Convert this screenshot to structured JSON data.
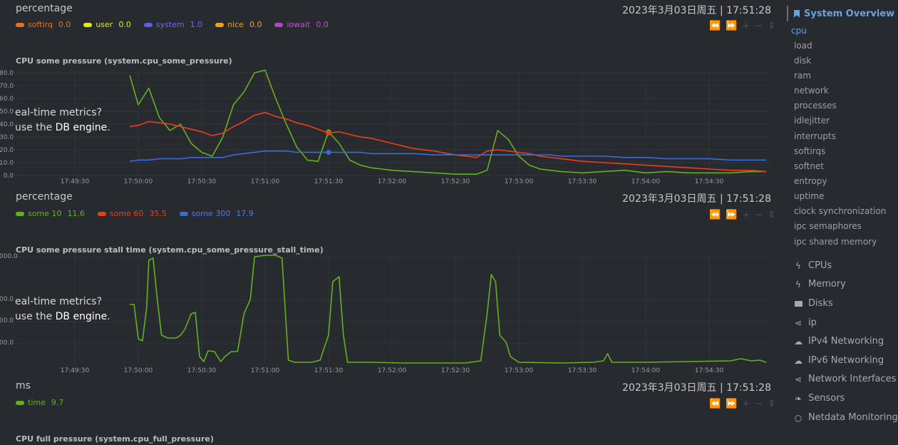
{
  "timestamp": "2023年3月03日周五 | 17:51:28",
  "sections": [
    {
      "unit": "percentage",
      "legend": [
        {
          "name": "softirq",
          "value": "0.0",
          "color": "#e8731c"
        },
        {
          "name": "user",
          "value": "0.0",
          "color": "#e3e81c"
        },
        {
          "name": "system",
          "value": "1.0",
          "color": "#5e5ee8"
        },
        {
          "name": "nice",
          "value": "0.0",
          "color": "#f0a020"
        },
        {
          "name": "iowait",
          "value": "0.0",
          "color": "#b842c8"
        }
      ]
    },
    {
      "unit": "percentage",
      "legend": [
        {
          "name": "some 10",
          "value": "11.6",
          "color": "#66b01c"
        },
        {
          "name": "some 60",
          "value": "35.5",
          "color": "#ee3d1a"
        },
        {
          "name": "some 300",
          "value": "17.9",
          "color": "#3a6cd8"
        }
      ]
    },
    {
      "unit": "ms",
      "legend": [
        {
          "name": "time",
          "value": "9.7",
          "color": "#66b01c"
        }
      ]
    }
  ],
  "charts": {
    "pressure": {
      "title": "CPU some pressure (system.cpu_some_pressure)",
      "yticks": [
        "80.0",
        "70.0",
        "60.0",
        "50.0",
        "40.0",
        "30.0",
        "20.0",
        "10.0",
        "0.0"
      ]
    },
    "stall": {
      "title": "CPU some pressure stall time (system.cpu_some_pressure_stall_time)",
      "yticks": [
        "000.0",
        "00.0",
        "00.0",
        "00.0"
      ]
    },
    "full": {
      "title": "CPU full pressure (system.cpu_full_pressure)"
    }
  },
  "xticks": [
    "17:49:30",
    "17:50:00",
    "17:50:30",
    "17:51:00",
    "17:51:30",
    "17:52:00",
    "17:52:30",
    "17:53:00",
    "17:53:30",
    "17:54:00",
    "17:54:30"
  ],
  "overlay": {
    "line1": "eal-time metrics?",
    "line2_pre": "use the ",
    "line2_link": "DB engine",
    "line2_post": "."
  },
  "toolbar_icons": [
    "rewind-icon",
    "fast-forward-icon",
    "zoom-in-icon",
    "zoom-out-icon",
    "resize-icon"
  ],
  "sidebar": {
    "header": "System Overview",
    "items": [
      "cpu",
      "load",
      "disk",
      "ram",
      "network",
      "processes",
      "idlejitter",
      "interrupts",
      "softirqs",
      "softnet",
      "entropy",
      "uptime",
      "clock synchronization",
      "ipc semaphores",
      "ipc shared memory"
    ],
    "groups": [
      {
        "label": "CPUs",
        "icon": "bolt-icon"
      },
      {
        "label": "Memory",
        "icon": "bolt-icon"
      },
      {
        "label": "Disks",
        "icon": "folder-icon"
      },
      {
        "label": "ip",
        "icon": "share-icon"
      },
      {
        "label": "IPv4 Networking",
        "icon": "cloud-icon"
      },
      {
        "label": "IPv6 Networking",
        "icon": "cloud-icon"
      },
      {
        "label": "Network Interfaces",
        "icon": "share-icon"
      },
      {
        "label": "Sensors",
        "icon": "leaf-icon"
      },
      {
        "label": "Netdata Monitoring",
        "icon": "circle-icon"
      }
    ]
  },
  "chart_data": [
    {
      "type": "line",
      "title": "CPU some pressure (system.cpu_some_pressure)",
      "ylabel": "percentage",
      "ylim": [
        0,
        80
      ],
      "x": [
        "17:49:56",
        "17:50:00",
        "17:50:05",
        "17:50:10",
        "17:50:15",
        "17:50:20",
        "17:50:25",
        "17:50:30",
        "17:50:35",
        "17:50:40",
        "17:50:45",
        "17:50:50",
        "17:50:55",
        "17:51:00",
        "17:51:05",
        "17:51:10",
        "17:51:15",
        "17:51:20",
        "17:51:25",
        "17:51:30",
        "17:51:35",
        "17:51:40",
        "17:51:45",
        "17:51:50",
        "17:51:55",
        "17:52:00",
        "17:52:10",
        "17:52:20",
        "17:52:30",
        "17:52:40",
        "17:52:45",
        "17:52:50",
        "17:52:55",
        "17:53:00",
        "17:53:05",
        "17:53:10",
        "17:53:15",
        "17:53:20",
        "17:53:30",
        "17:53:40",
        "17:53:50",
        "17:54:00",
        "17:54:10",
        "17:54:20",
        "17:54:30",
        "17:54:40",
        "17:54:50",
        "17:54:57"
      ],
      "series": [
        {
          "name": "some 10",
          "color": "#66b01c",
          "values": [
            78,
            55,
            68,
            45,
            35,
            40,
            25,
            18,
            15,
            30,
            55,
            65,
            80,
            82,
            60,
            40,
            22,
            12,
            11,
            34,
            25,
            12,
            8,
            6,
            5,
            4,
            3,
            2,
            1,
            1,
            4,
            35,
            28,
            15,
            8,
            5,
            4,
            3,
            2,
            3,
            4,
            2,
            3,
            2,
            2,
            2,
            3,
            3
          ]
        },
        {
          "name": "some 60",
          "color": "#ee3d1a",
          "values": [
            38,
            39,
            42,
            41,
            40,
            38,
            36,
            34,
            31,
            33,
            38,
            42,
            47,
            49,
            46,
            44,
            41,
            39,
            36,
            33,
            34,
            32,
            30,
            29,
            27,
            25,
            21,
            19,
            16,
            14,
            19,
            20,
            19,
            18,
            17,
            15,
            14,
            13,
            11,
            10,
            9,
            8,
            7,
            6,
            5,
            4,
            4,
            3
          ]
        },
        {
          "name": "some 300",
          "color": "#3a6cd8",
          "values": [
            11,
            12,
            12,
            13,
            13,
            13,
            14,
            14,
            14,
            14,
            16,
            17,
            18,
            19,
            19,
            19,
            18,
            18,
            18,
            18,
            18,
            18,
            18,
            17,
            17,
            17,
            17,
            16,
            16,
            16,
            16,
            16,
            16,
            16,
            16,
            16,
            16,
            15,
            15,
            15,
            14,
            14,
            13,
            13,
            13,
            12,
            12,
            12
          ]
        }
      ]
    }
  ]
}
